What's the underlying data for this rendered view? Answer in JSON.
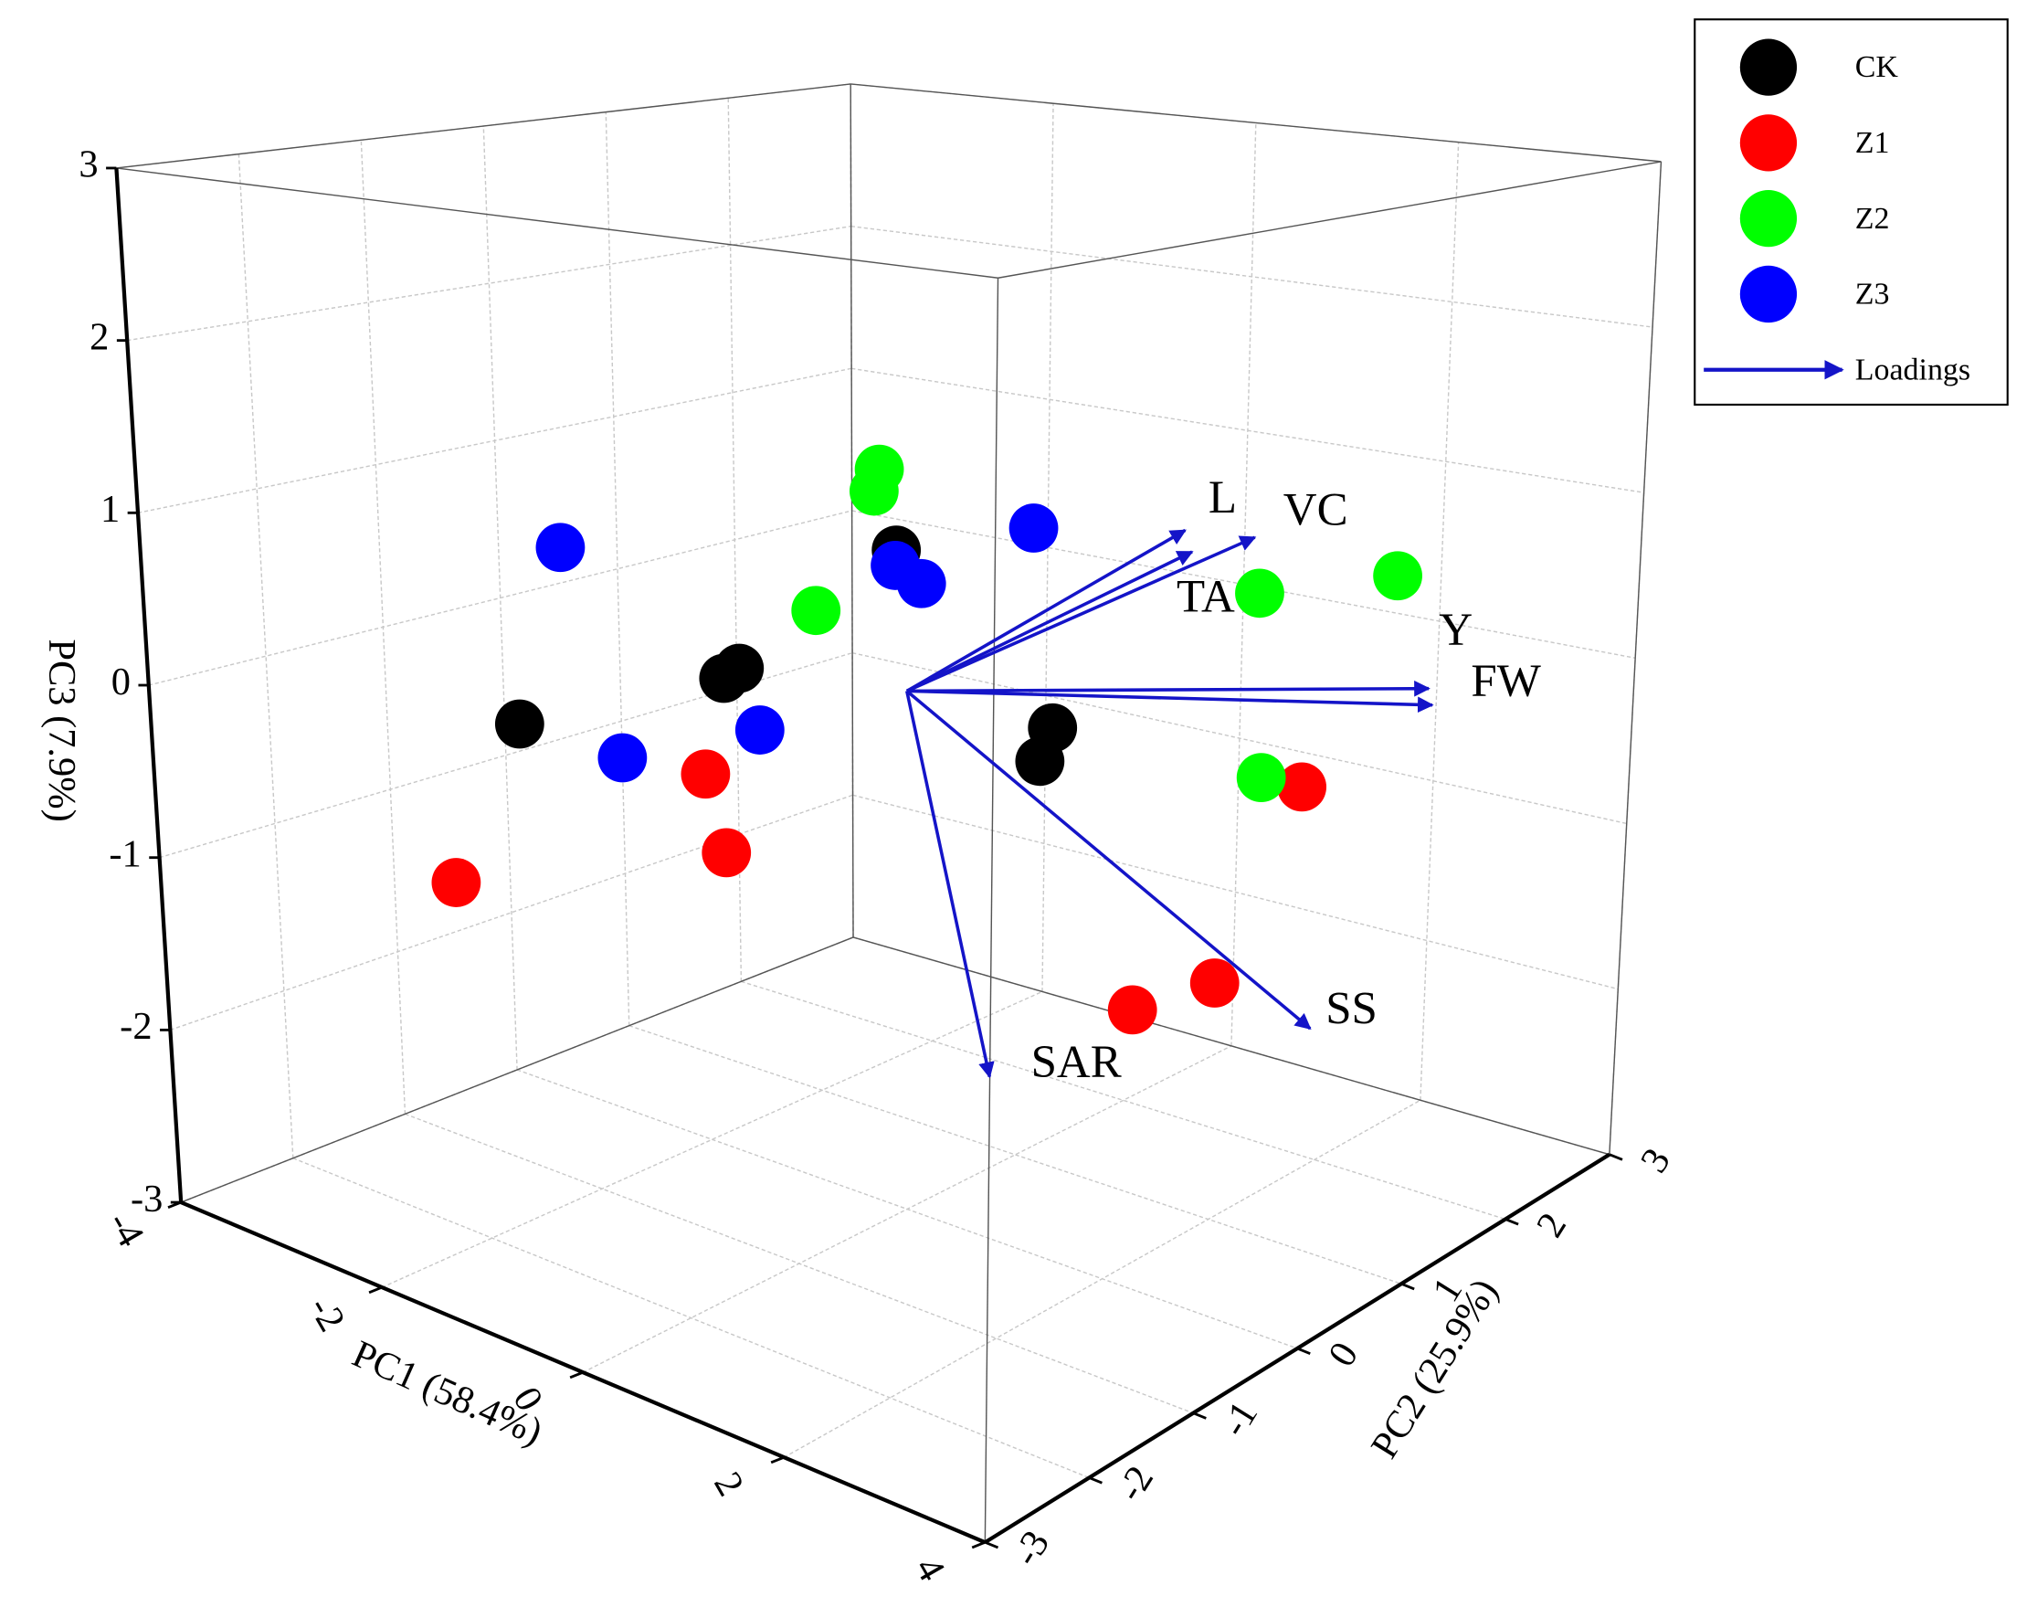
{
  "chart_data": {
    "type": "scatter3d",
    "xlabel": "PC1 (58.4%)",
    "ylabel": "PC2 (25.9%)",
    "zlabel": "PC3 (7.9%)",
    "xlim": [
      -4,
      4
    ],
    "ylim": [
      -3,
      3
    ],
    "zlim": [
      -3,
      3
    ],
    "xticks": [
      -4,
      -2,
      0,
      2,
      4
    ],
    "yticks": [
      -3,
      -2,
      -1,
      0,
      1,
      2,
      3
    ],
    "zticks": [
      -3,
      -2,
      -1,
      0,
      1,
      2,
      3
    ],
    "grid": true,
    "legend": "upper right",
    "series": [
      {
        "name": "CK",
        "color": "#000000",
        "x": [
          -2.98,
          -1.41,
          -1.29,
          -0.08,
          1.13,
          1.03
        ],
        "y": [
          -0.75,
          -0.35,
          -0.32,
          -0.02,
          0.28,
          0.26
        ],
        "z": [
          -0.48,
          -0.05,
          0.02,
          0.81,
          -0.12,
          -0.32
        ]
      },
      {
        "name": "Z1",
        "color": "#ff0000",
        "x": [
          -3.52,
          -1.56,
          -1.41,
          1.78,
          2.43,
          3.08
        ],
        "y": [
          -0.88,
          -0.39,
          -0.35,
          0.45,
          0.61,
          0.77
        ],
        "z": [
          -1.51,
          -0.63,
          -1.08,
          -1.67,
          -1.46,
          -0.31
        ]
      },
      {
        "name": "Z2",
        "color": "#00ff00",
        "x": [
          -0.21,
          -0.25,
          -0.7,
          2.71,
          3.78,
          2.76
        ],
        "y": [
          -0.05,
          -0.06,
          -0.17,
          0.68,
          0.94,
          0.69
        ],
        "z": [
          1.27,
          1.14,
          0.41,
          0.75,
          0.91,
          -0.28
        ]
      },
      {
        "name": "Z3",
        "color": "#0000ff",
        "x": [
          -2.63,
          -2.2,
          -1.14,
          -0.09,
          0.11,
          0.97
        ],
        "y": [
          -0.66,
          -0.55,
          -0.28,
          -0.02,
          0.03,
          0.24
        ],
        "z": [
          0.62,
          -0.6,
          -0.33,
          0.72,
          0.63,
          1.01
        ]
      }
    ],
    "loadings": {
      "name": "Loadings",
      "color": "#1414c8",
      "labels": [
        "L",
        "VC",
        "TA",
        "Y",
        "FW",
        "SS",
        "SAR"
      ],
      "x": [
        2.13,
        2.66,
        2.18,
        4.05,
        4.08,
        3.2,
        0.66
      ],
      "y": [
        0.53,
        0.67,
        0.55,
        1.01,
        1.02,
        0.8,
        0.16
      ],
      "z": [
        1.07,
        1.06,
        0.95,
        0.3,
        0.21,
        -1.65,
        -2.16
      ]
    }
  }
}
